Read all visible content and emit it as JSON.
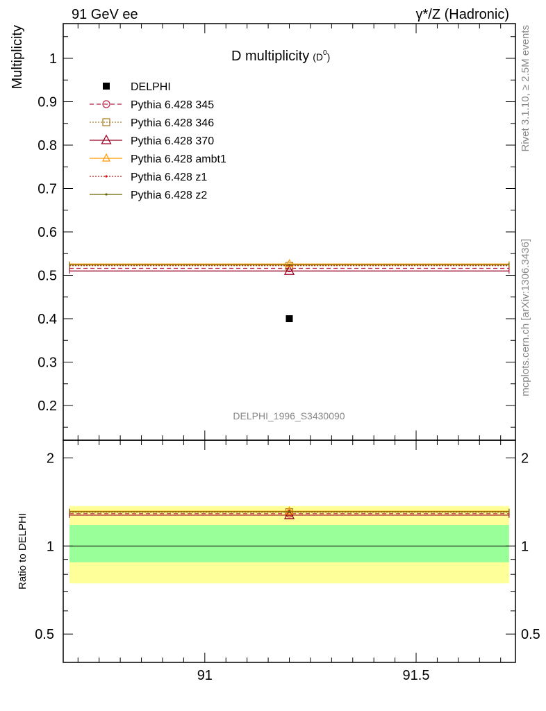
{
  "header": {
    "left_label": "91 GeV ee",
    "right_label": "γ*/Z (Hadronic)"
  },
  "side_text": {
    "rivet": "Rivet 3.1.10, ≥ 2.5M events",
    "mcplots": "mcplots.cern.ch [arXiv:1306.3436]"
  },
  "chart_data": {
    "type": "scatter",
    "title": "D multiplicity",
    "title_sub": "(D",
    "title_sup": "0",
    "title_close": ")",
    "ylabel": "Multiplicity",
    "ratio_ylabel": "Ratio to DELPHI",
    "analysis_label": "DELPHI_1996_S3430090",
    "xlim": [
      90.665,
      91.735
    ],
    "ylim": [
      0.12,
      1.08
    ],
    "ratio_ylim": [
      0.4,
      2.3
    ],
    "x_ticks": [
      "91",
      "91.5"
    ],
    "y_ticks": [
      "0.2",
      "0.3",
      "0.4",
      "0.5",
      "0.6",
      "0.7",
      "0.8",
      "0.9",
      "1"
    ],
    "ratio_y_ticks": [
      "0.5",
      "1",
      "2"
    ],
    "bin": {
      "low": 90.68,
      "high": 91.72,
      "center": 91.2
    },
    "data": {
      "name": "DELPHI",
      "value": 0.4,
      "band_inner": [
        0.88,
        1.18
      ],
      "band_outer": [
        0.745,
        1.37
      ],
      "color_inner": "#99ff99",
      "color_outer": "#ffff99"
    },
    "series": [
      {
        "name": "Pythia 6.428 345",
        "value": 0.516,
        "color": "#bb2244",
        "dash": "6,4",
        "marker": "circle"
      },
      {
        "name": "Pythia 6.428 346",
        "value": 0.522,
        "color": "#aa7722",
        "dash": "2,2",
        "marker": "square"
      },
      {
        "name": "Pythia 6.428 370",
        "value": 0.51,
        "color": "#990022",
        "dash": "",
        "marker": "triangle"
      },
      {
        "name": "Pythia 6.428 ambt1",
        "value": 0.526,
        "color": "#ff9900",
        "dash": "",
        "marker": "triangle-small"
      },
      {
        "name": "Pythia 6.428 z1",
        "value": 0.523,
        "color": "#cc1111",
        "dash": "2,2",
        "marker": "dot"
      },
      {
        "name": "Pythia 6.428 z2",
        "value": 0.524,
        "color": "#666600",
        "dash": "",
        "marker": "dot"
      }
    ]
  }
}
